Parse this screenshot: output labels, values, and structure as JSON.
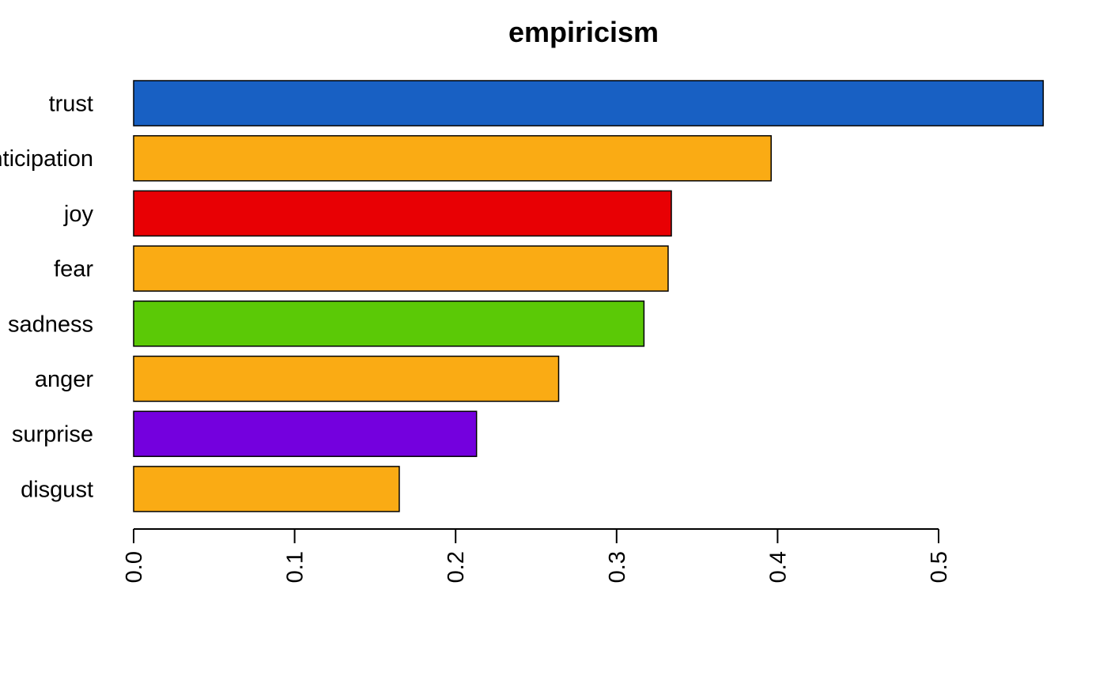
{
  "chart_data": {
    "type": "bar",
    "orientation": "horizontal",
    "title": "empiricism",
    "xlabel": "",
    "ylabel": "",
    "categories": [
      "trust",
      "anticipation",
      "joy",
      "fear",
      "sadness",
      "anger",
      "surprise",
      "disgust"
    ],
    "values": [
      0.565,
      0.396,
      0.334,
      0.332,
      0.317,
      0.264,
      0.213,
      0.165
    ],
    "bar_colors": [
      "#1860C3",
      "#FAAB14",
      "#E80004",
      "#FAAB14",
      "#5BC906",
      "#FAAB14",
      "#7400DE",
      "#FAAB14"
    ],
    "xlim": [
      0,
      0.565
    ],
    "x_ticks": [
      0.0,
      0.1,
      0.2,
      0.3,
      0.4,
      0.5
    ],
    "x_tick_labels": [
      "0.0",
      "0.1",
      "0.2",
      "0.3",
      "0.4",
      "0.5"
    ],
    "tick_label_rotation": "vertical",
    "grid": false,
    "legend": "none"
  }
}
